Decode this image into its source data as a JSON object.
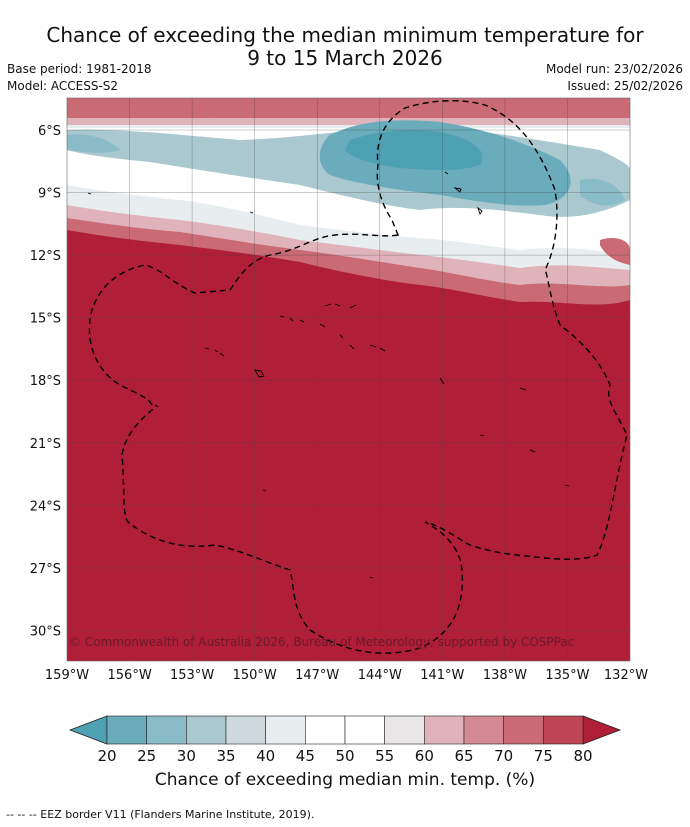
{
  "title_line1": "Chance of exceeding the median minimum temperature for",
  "title_line2": "9 to 15 March 2026",
  "base_period": "Base period: 1981-2018",
  "model": "Model: ACCESS-S2",
  "model_run": "Model run: 23/02/2026",
  "issued": "Issued: 25/02/2026",
  "copyright": "© Commonwealth of Australia 2026, Bureau of Meteorology, supported by COSPPac",
  "lat_labels": [
    "6°S",
    "9°S",
    "12°S",
    "15°S",
    "18°S",
    "21°S",
    "24°S",
    "27°S",
    "30°S"
  ],
  "lon_labels": [
    "159°W",
    "156°W",
    "153°W",
    "150°W",
    "147°W",
    "144°W",
    "141°W",
    "138°W",
    "135°W",
    "132°W"
  ],
  "colorbar": {
    "ticks": [
      "20",
      "25",
      "30",
      "35",
      "40",
      "45",
      "50",
      "55",
      "60",
      "65",
      "70",
      "75",
      "80"
    ],
    "colors": [
      "#4ea0b3",
      "#6aacbb",
      "#89bcc6",
      "#aac8cf",
      "#cdd9dd",
      "#e8eef0",
      "#ffffff",
      "#ffffff",
      "#e9e6e7",
      "#e0b3ba",
      "#d48a93",
      "#c96a74",
      "#bf4553",
      "#b01e38"
    ],
    "title": "Chance of exceeding median min. temp. (%)"
  },
  "footer": "--  --  -- EEZ border V11 (Flanders Marine Institute, 2019)."
}
